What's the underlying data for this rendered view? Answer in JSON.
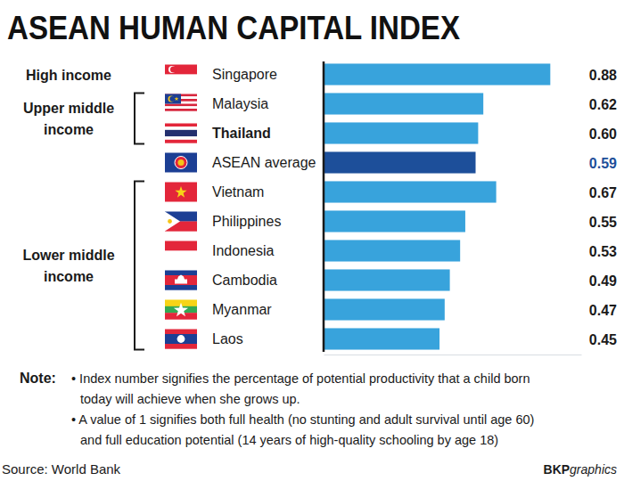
{
  "chart_data": {
    "type": "bar",
    "orientation": "horizontal",
    "title": "ASEAN HUMAN CAPITAL INDEX",
    "categories": [
      "Singapore",
      "Malaysia",
      "Thailand",
      "ASEAN average",
      "Vietnam",
      "Philippines",
      "Indonesia",
      "Cambodia",
      "Myanmar",
      "Laos"
    ],
    "values": [
      0.88,
      0.62,
      0.6,
      0.59,
      0.67,
      0.55,
      0.53,
      0.49,
      0.47,
      0.45
    ],
    "value_labels": [
      "0.88",
      "0.62",
      "0.60",
      "0.59",
      "0.67",
      "0.55",
      "0.53",
      "0.49",
      "0.47",
      "0.45"
    ],
    "colors": [
      "#38a3dc",
      "#38a3dc",
      "#38a3dc",
      "#1d4f9a",
      "#38a3dc",
      "#38a3dc",
      "#38a3dc",
      "#38a3dc",
      "#38a3dc",
      "#38a3dc"
    ],
    "data_labels": true,
    "xlim": [
      0,
      1
    ],
    "xticks": [],
    "tick_labels": "y",
    "groups": [
      {
        "label": [
          "High income"
        ],
        "categories": [
          "Singapore"
        ]
      },
      {
        "label": [
          "Upper middle",
          "income"
        ],
        "categories": [
          "Malaysia",
          "Thailand"
        ]
      },
      {
        "label": [
          "Lower middle",
          "income"
        ],
        "categories": [
          "Vietnam",
          "Philippines",
          "Indonesia",
          "Cambodia",
          "Myanmar",
          "Laos"
        ]
      }
    ],
    "notes": {
      "label": "Note:",
      "items": [
        [
          "• Index number signifies the percentage of potential productivity that a child born",
          "today will achieve when she grows up."
        ],
        [
          "• A value of 1 signifies both full health (no stunting and adult survival until age 60)",
          "and full education potential (14 years of high-quality schooling by age 18)"
        ]
      ]
    },
    "source": "Source: World Bank",
    "credit": [
      "BKP",
      "graphics"
    ]
  }
}
